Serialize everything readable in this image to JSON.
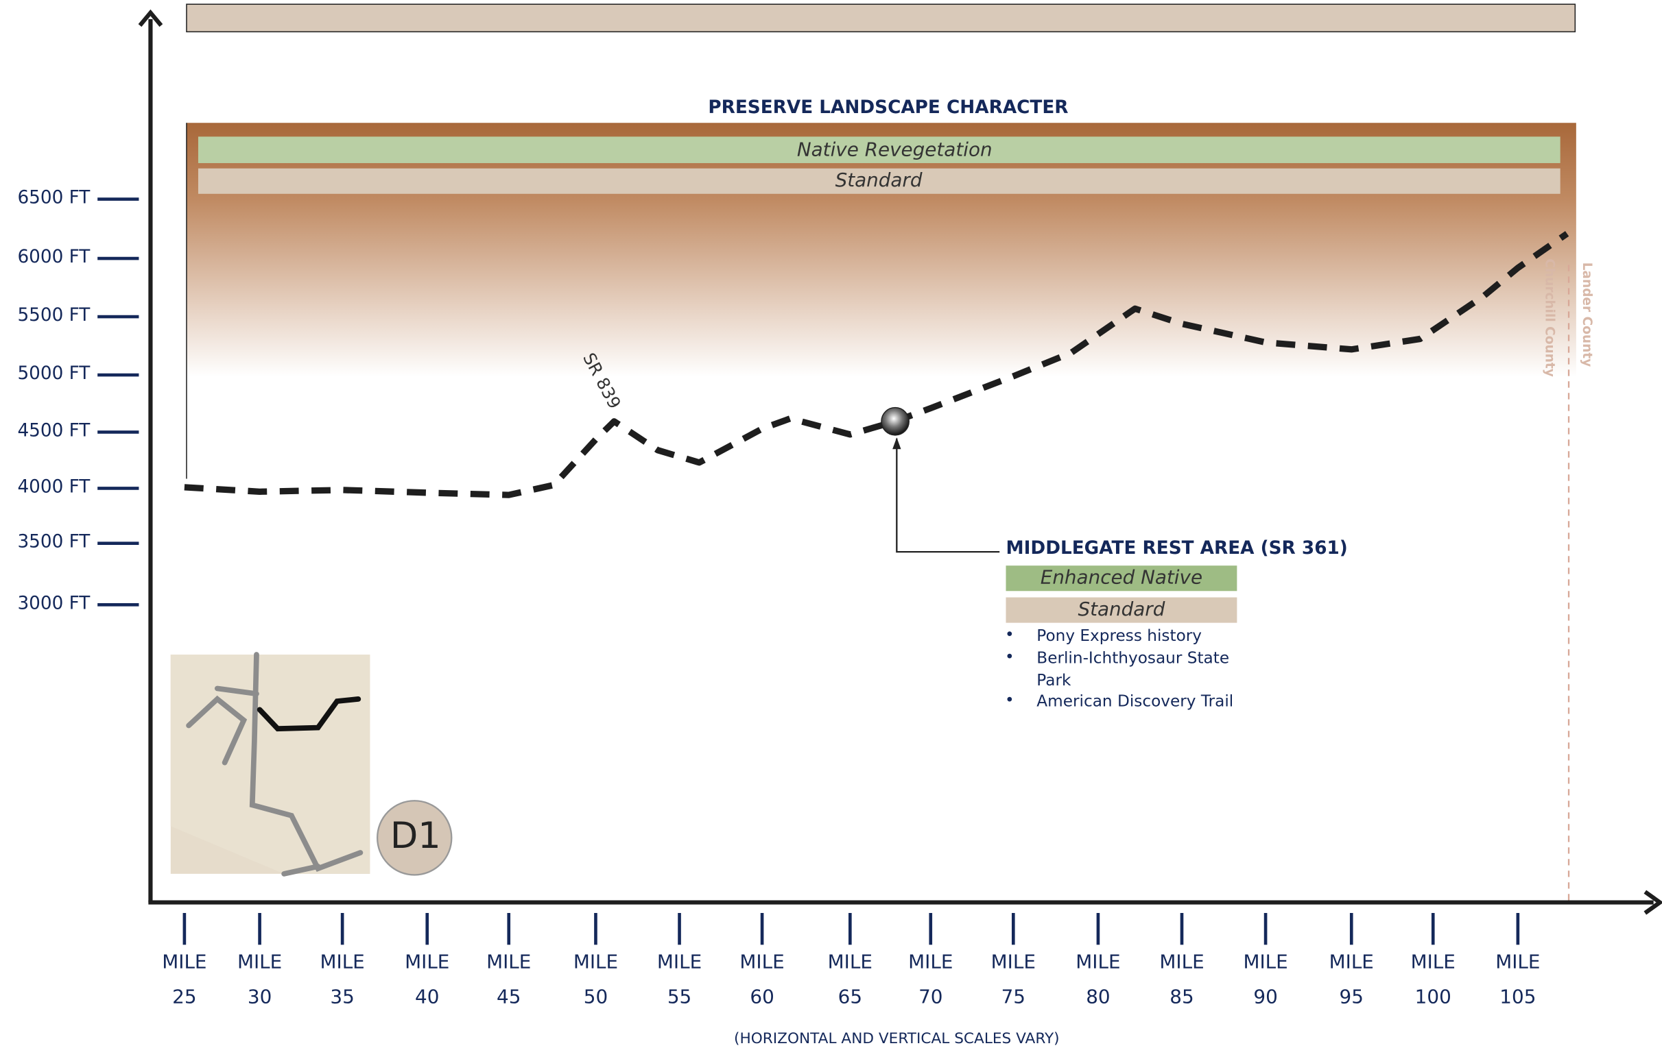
{
  "chart_data": {
    "type": "line",
    "title": "PRESERVE LANDSCAPE CHARACTER",
    "bands": [
      "Native Revegetation",
      "Standard"
    ],
    "note": "(HORIZONTAL AND VERTICAL SCALES VARY)",
    "route_label": "SR 839",
    "counties": [
      "Churchill County",
      "Lander County"
    ],
    "map_label": "D1",
    "x": [
      25,
      30,
      35,
      40,
      45,
      47.6,
      50,
      51.1,
      53.7,
      56.2,
      60,
      61.6,
      65,
      67.8,
      70,
      75,
      78.4,
      82.2,
      85,
      90,
      95,
      99.2,
      103,
      105,
      107.9
    ],
    "series": [
      {
        "color": "#1e1e1e",
        "values": [
          4000,
          3960,
          3975,
          3950,
          3930,
          4020,
          4425,
          4585,
          4330,
          4220,
          4520,
          4610,
          4470,
          4585,
          4700,
          4980,
          5180,
          5560,
          5430,
          5270,
          5210,
          5300,
          5670,
          5910,
          6200
        ]
      }
    ],
    "callout": {
      "x": 67.8,
      "y": 4585,
      "title": "MIDDLEGATE REST AREA (SR 361)",
      "bands": [
        "Enhanced Native",
        "Standard"
      ],
      "bullets": [
        "Pony Express history",
        "Berlin-Ichthyosaur State Park",
        "American Discovery Trail"
      ]
    },
    "xlim": [
      22.7,
      113
    ],
    "xticks": [
      {
        "value": 25,
        "label": "MILE 25"
      },
      {
        "value": 30,
        "label": "MILE 30"
      },
      {
        "value": 35,
        "label": "MILE 35"
      },
      {
        "value": 40,
        "label": "MILE 40"
      },
      {
        "value": 45,
        "label": "MILE 45"
      },
      {
        "value": 50,
        "label": "MILE 50"
      },
      {
        "value": 55,
        "label": "MILE 55"
      },
      {
        "value": 60,
        "label": "MILE 60"
      },
      {
        "value": 65,
        "label": "MILE 65"
      },
      {
        "value": 70,
        "label": "MILE 70"
      },
      {
        "value": 75,
        "label": "MILE 75"
      },
      {
        "value": 80,
        "label": "MILE 80"
      },
      {
        "value": 85,
        "label": "MILE 85"
      },
      {
        "value": 90,
        "label": "MILE 90"
      },
      {
        "value": 95,
        "label": "MILE 95"
      },
      {
        "value": 100,
        "label": "MILE 100"
      },
      {
        "value": 105,
        "label": "MILE 105"
      }
    ],
    "ylim": [
      440,
      8060
    ],
    "yticks": [
      {
        "value": 3000,
        "label": "3000 FT"
      },
      {
        "value": 3500,
        "label": "3500 FT"
      },
      {
        "value": 4000,
        "label": "4000 FT"
      },
      {
        "value": 4500,
        "label": "4500 FT"
      },
      {
        "value": 5000,
        "label": "5000 FT"
      },
      {
        "value": 5500,
        "label": "5500 FT"
      },
      {
        "value": 6000,
        "label": "6000 FT"
      },
      {
        "value": 6500,
        "label": "6500 FT"
      }
    ]
  }
}
